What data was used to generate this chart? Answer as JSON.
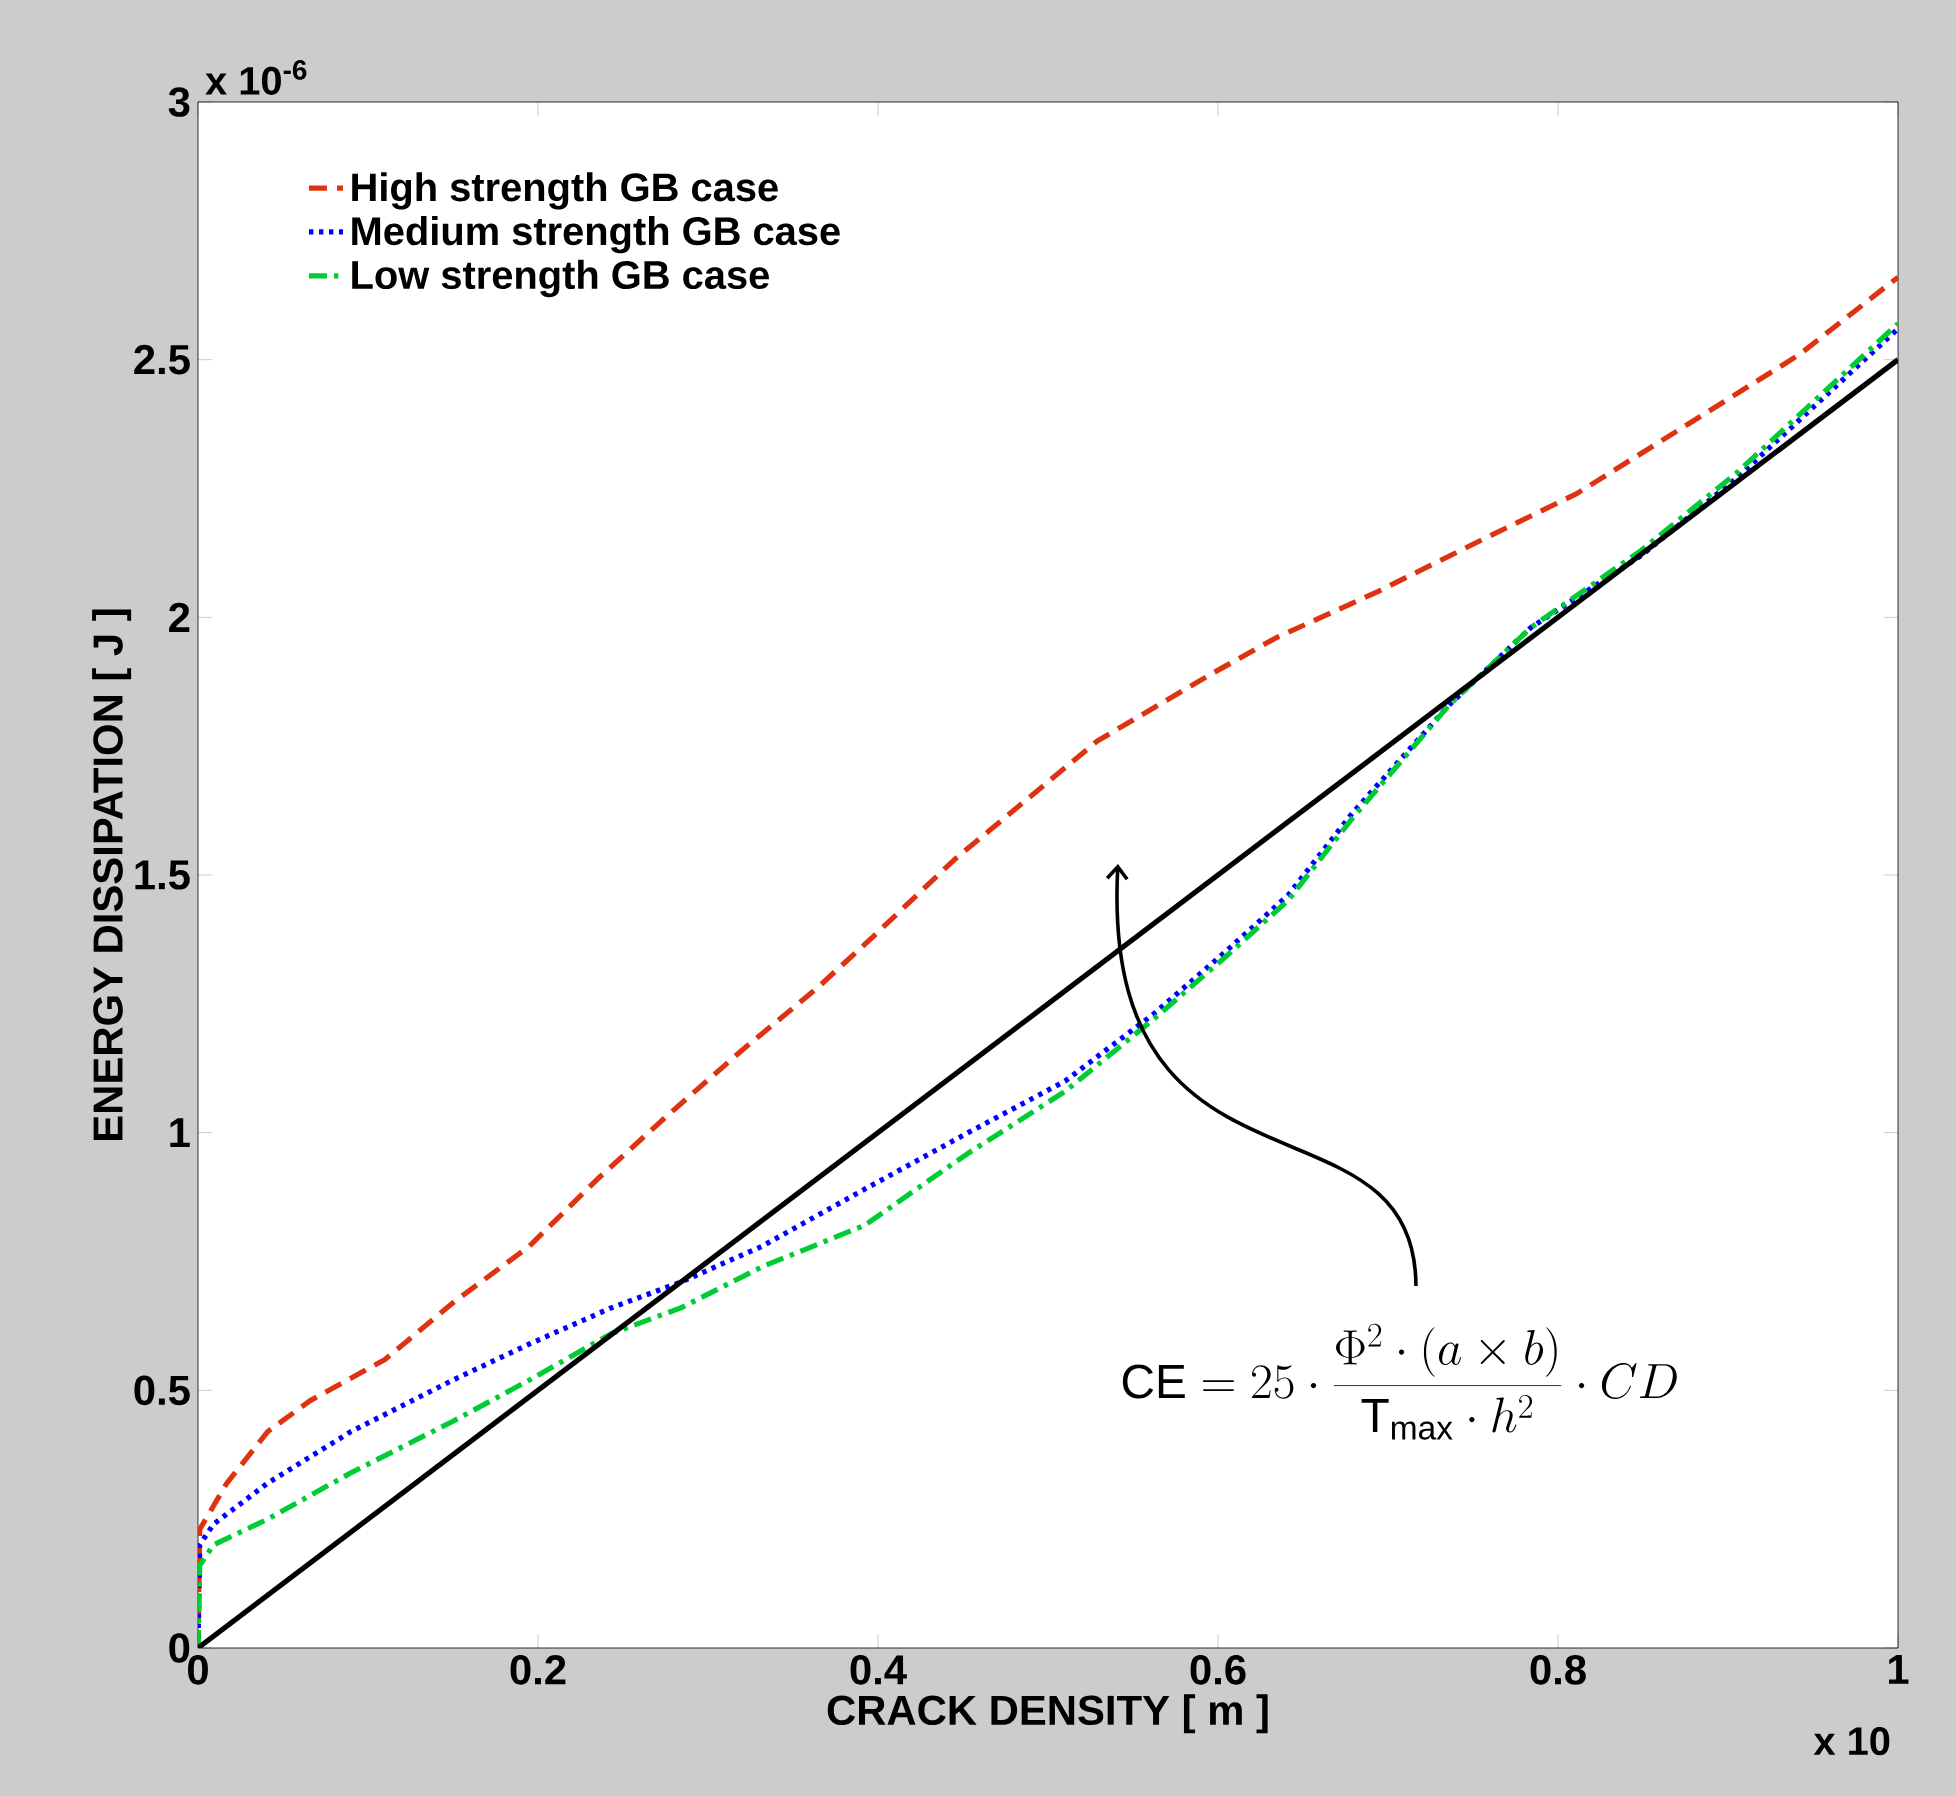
{
  "chart_data": {
    "type": "line",
    "xlabel": "CRACK DENSITY [ m ]",
    "ylabel": "ENERGY DISSIPATION [ J ]",
    "xlim": [
      0,
      1
    ],
    "ylim": [
      0,
      3
    ],
    "xticks": [
      0,
      0.2,
      0.4,
      0.6,
      0.8,
      1
    ],
    "yticks": [
      0,
      0.5,
      1,
      1.5,
      2,
      2.5,
      3
    ],
    "legend": "top left",
    "grid": false,
    "annotations": [
      "x 10$^{-6}$",
      "x 10",
      "\\mathrm{CE} = 25\\cdot\\frac{\\Phi^{2}\\cdot\\left(a\\times b\\right)}{\\mathrm{T}_{\\mathrm{max}}\\cdot h^{2}}\\cdot CD"
    ],
    "series": [
      {
        "name": "High strength GB case",
        "color": "#dd3311",
        "line_style": "dashed",
        "x": [
          0,
          0.001,
          0.017,
          0.041,
          0.066,
          0.11,
          0.15,
          0.195,
          0.235,
          0.275,
          0.32,
          0.364,
          0.397,
          0.445,
          0.529,
          0.596,
          0.634,
          0.694,
          0.755,
          0.811,
          0.879,
          0.942,
          1
        ],
        "values": [
          0,
          0.23,
          0.32,
          0.42,
          0.48,
          0.56,
          0.67,
          0.78,
          0.91,
          1.03,
          1.16,
          1.28,
          1.38,
          1.53,
          1.76,
          1.89,
          1.96,
          2.05,
          2.15,
          2.24,
          2.38,
          2.51,
          2.66
        ]
      },
      {
        "name": "Medium strength GB case",
        "color": "#0000ff",
        "line_style": "dotted",
        "x": [
          0,
          0.001,
          0.009,
          0.041,
          0.09,
          0.15,
          0.195,
          0.243,
          0.284,
          0.332,
          0.392,
          0.453,
          0.51,
          0.562,
          0.604,
          0.641,
          0.679,
          0.736,
          0.784,
          0.849,
          0.905,
          1
        ],
        "values": [
          0,
          0.2,
          0.24,
          0.32,
          0.42,
          0.52,
          0.59,
          0.66,
          0.71,
          0.78,
          0.89,
          1.0,
          1.1,
          1.23,
          1.35,
          1.46,
          1.62,
          1.83,
          1.98,
          2.12,
          2.27,
          2.56
        ]
      },
      {
        "name": "Low strength GB case",
        "color": "#00cc33",
        "line_style": "dashdot",
        "x": [
          0,
          0.001,
          0.009,
          0.041,
          0.09,
          0.15,
          0.195,
          0.243,
          0.284,
          0.332,
          0.392,
          0.453,
          0.51,
          0.562,
          0.604,
          0.641,
          0.679,
          0.736,
          0.784,
          0.849,
          0.905,
          1
        ],
        "values": [
          0,
          0.16,
          0.2,
          0.25,
          0.34,
          0.44,
          0.52,
          0.61,
          0.66,
          0.74,
          0.82,
          0.96,
          1.08,
          1.22,
          1.34,
          1.45,
          1.61,
          1.83,
          1.98,
          2.13,
          2.28,
          2.57
        ]
      },
      {
        "color": "#000000",
        "line_style": "solid",
        "x": [
          0,
          1
        ],
        "values": [
          0,
          2.5
        ]
      }
    ]
  }
}
